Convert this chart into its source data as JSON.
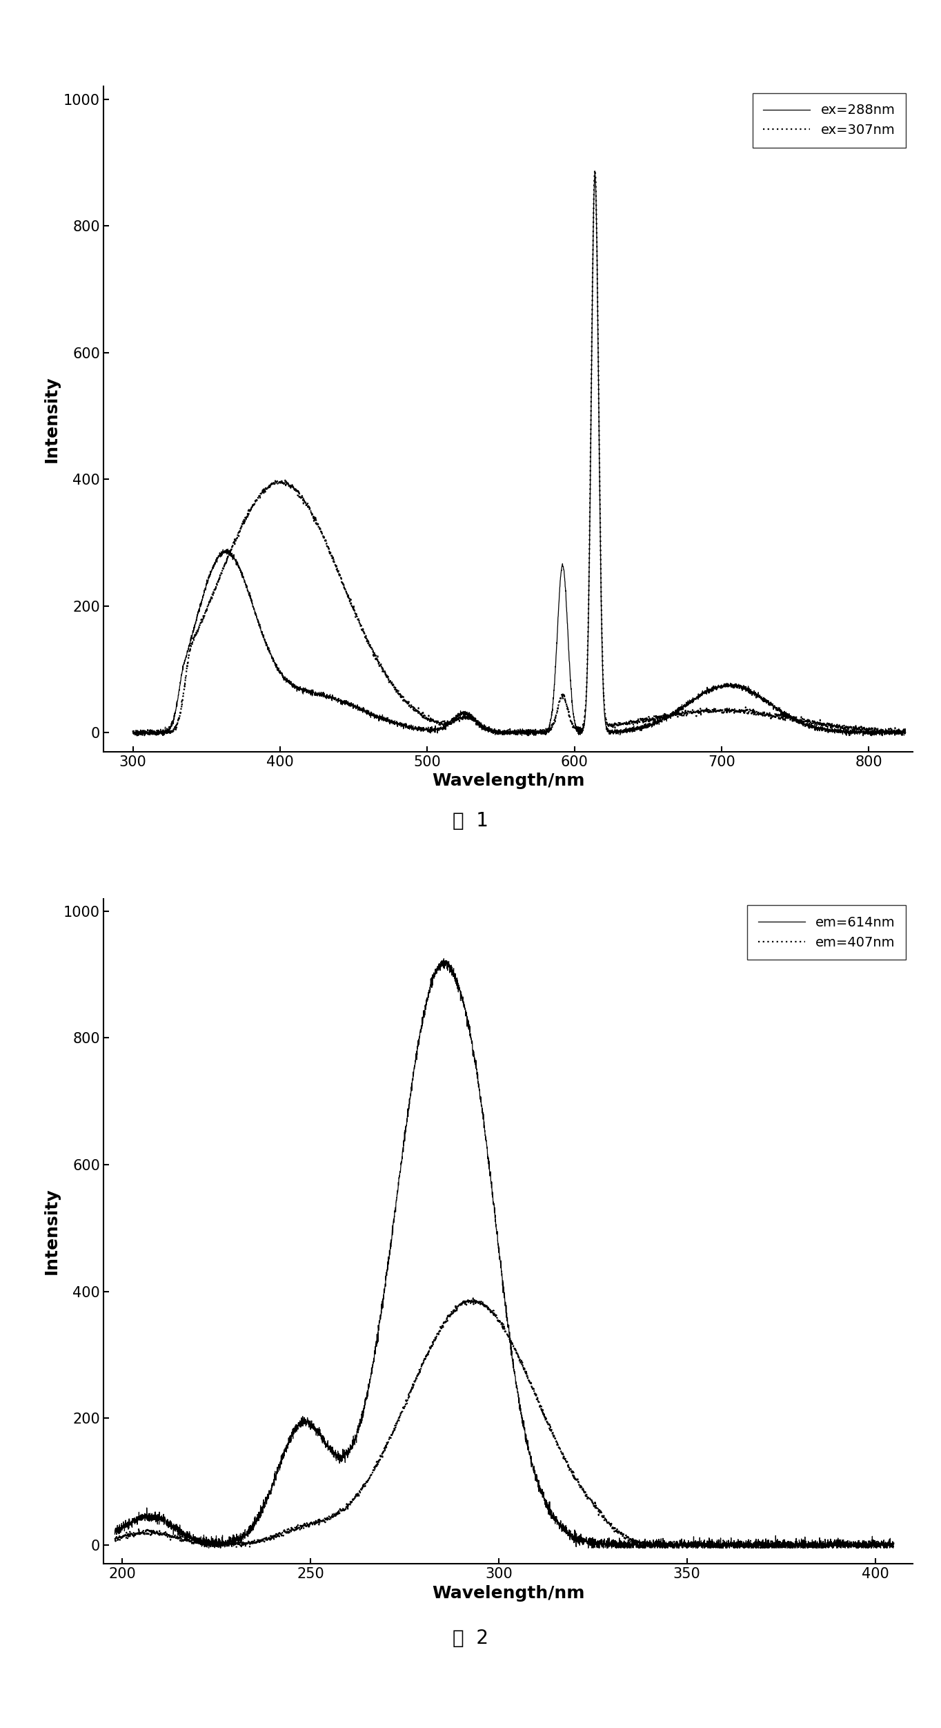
{
  "fig1": {
    "xlabel": "Wavelength/nm",
    "ylabel": "Intensity",
    "xlim": [
      280,
      830
    ],
    "ylim": [
      -30,
      1020
    ],
    "xticks": [
      300,
      400,
      500,
      600,
      700,
      800
    ],
    "yticks": [
      0,
      200,
      400,
      600,
      800,
      1000
    ],
    "legend1": "ex=288nm",
    "legend2": "ex=307nm",
    "caption": "图  1"
  },
  "fig2": {
    "xlabel": "Wavelength/nm",
    "ylabel": "Intensity",
    "xlim": [
      195,
      410
    ],
    "ylim": [
      -30,
      1020
    ],
    "xticks": [
      200,
      250,
      300,
      350,
      400
    ],
    "yticks": [
      0,
      200,
      400,
      600,
      800,
      1000
    ],
    "legend1": "em=614nm",
    "legend2": "em=407nm",
    "caption": "图  2"
  }
}
